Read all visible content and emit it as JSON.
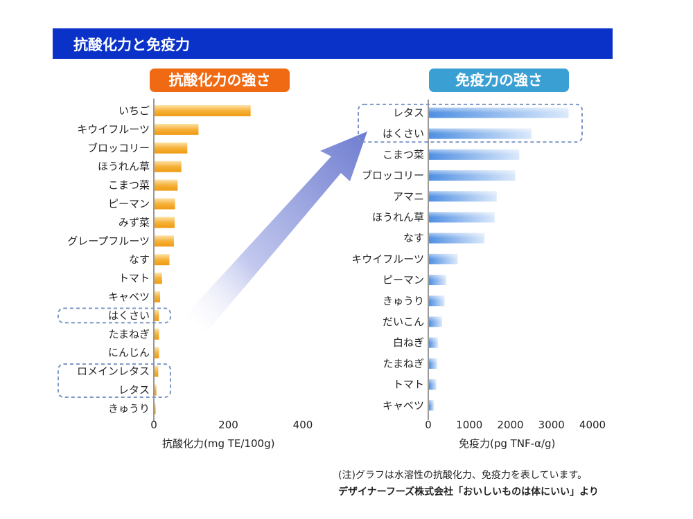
{
  "header": {
    "title": "抗酸化力と免疫力"
  },
  "colors": {
    "header_bg": "#0a32c8",
    "left_badge": "#f06a14",
    "right_badge": "#3aa0d4",
    "left_bar": "#f3a321",
    "right_bar": "#7fb2ec",
    "highlight_border": "#7a96c4",
    "arrow": "#7d88d4"
  },
  "notes": {
    "line1": "(注)グラフは水溶性の抗酸化力、免疫力を表しています。",
    "line2": "デザイナーフーズ株式会社「おいしいものは体にいい」より"
  },
  "chart_data": [
    {
      "type": "bar",
      "orientation": "horizontal",
      "title": "抗酸化力の強さ",
      "xlabel": "抗酸化力(mg TE/100g)",
      "categories": [
        "いちご",
        "キウイフルーツ",
        "ブロッコリー",
        "ほうれん草",
        "こまつ菜",
        "ピーマン",
        "みず菜",
        "グレープフルーツ",
        "なす",
        "トマト",
        "キャベツ",
        "はくさい",
        "たまねぎ",
        "にんじん",
        "ロメインレタス",
        "レタス",
        "きゅうり"
      ],
      "values": [
        258,
        118,
        88,
        72,
        62,
        55,
        54,
        52,
        40,
        20,
        15,
        12,
        12,
        12,
        10,
        5,
        3
      ],
      "xlim": [
        0,
        400
      ],
      "xticks": [
        "0",
        "200",
        "400"
      ],
      "highlighted": [
        "はくさい",
        "ロメインレタス",
        "レタス"
      ]
    },
    {
      "type": "bar",
      "orientation": "horizontal",
      "title": "免疫力の強さ",
      "xlabel": "免疫力(pg TNF-α/g)",
      "categories": [
        "レタス",
        "はくさい",
        "こまつ菜",
        "ブロッコリー",
        "アマニ",
        "ほうれん草",
        "なす",
        "キウイフルーツ",
        "ピーマン",
        "きゅうり",
        "だいこん",
        "白ねぎ",
        "たまねぎ",
        "トマト",
        "キャベツ"
      ],
      "values": [
        3400,
        2500,
        2200,
        2100,
        1650,
        1600,
        1350,
        700,
        420,
        380,
        320,
        220,
        200,
        180,
        120
      ],
      "xlim": [
        0,
        4000
      ],
      "xticks": [
        "0",
        "1000",
        "2000",
        "3000",
        "4000"
      ],
      "highlighted": [
        "レタス",
        "はくさい"
      ]
    }
  ]
}
